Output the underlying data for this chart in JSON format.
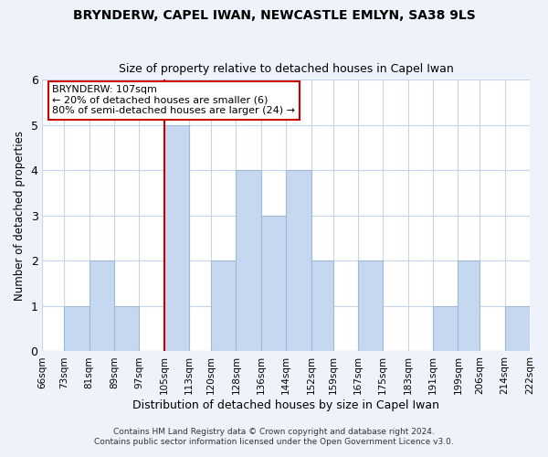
{
  "title": "BRYNDERW, CAPEL IWAN, NEWCASTLE EMLYN, SA38 9LS",
  "subtitle": "Size of property relative to detached houses in Capel Iwan",
  "xlabel": "Distribution of detached houses by size in Capel Iwan",
  "ylabel": "Number of detached properties",
  "bin_edges": [
    66,
    73,
    81,
    89,
    97,
    105,
    113,
    120,
    128,
    136,
    144,
    152,
    159,
    167,
    175,
    183,
    191,
    199,
    206,
    214,
    222
  ],
  "counts": [
    0,
    1,
    2,
    1,
    0,
    5,
    0,
    2,
    4,
    3,
    4,
    2,
    0,
    2,
    0,
    0,
    1,
    2,
    0,
    1
  ],
  "bar_color": "#c5d8f0",
  "bar_edge_color": "#a0b8d8",
  "vline_x": 105,
  "vline_color": "#cc0000",
  "annotation_box_text": "BRYNDERW: 107sqm\n← 20% of detached houses are smaller (6)\n80% of semi-detached houses are larger (24) →",
  "ylim": [
    0,
    6
  ],
  "yticks": [
    0,
    1,
    2,
    3,
    4,
    5,
    6
  ],
  "tick_labels": [
    "66sqm",
    "73sqm",
    "81sqm",
    "89sqm",
    "97sqm",
    "105sqm",
    "113sqm",
    "120sqm",
    "128sqm",
    "136sqm",
    "144sqm",
    "152sqm",
    "159sqm",
    "167sqm",
    "175sqm",
    "183sqm",
    "191sqm",
    "199sqm",
    "206sqm",
    "214sqm",
    "222sqm"
  ],
  "footer_line1": "Contains HM Land Registry data © Crown copyright and database right 2024.",
  "footer_line2": "Contains public sector information licensed under the Open Government Licence v3.0.",
  "background_color": "#eef2fb",
  "plot_background_color": "#ffffff",
  "grid_color": "#c8d4e8"
}
